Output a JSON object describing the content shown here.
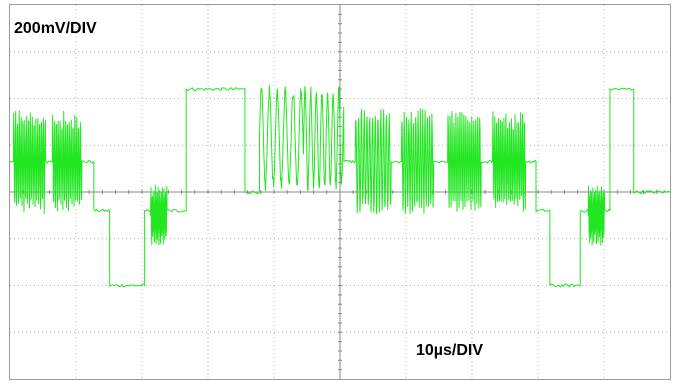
{
  "chart_data": {
    "type": "line",
    "vertical_scale": "200mV/DIV",
    "horizontal_scale": "10µs/DIV",
    "x_divisions": 10,
    "y_divisions": 8,
    "x_unit": "µs",
    "y_unit": "mV",
    "xlim": [
      0,
      100
    ],
    "ylim": [
      -800,
      800
    ],
    "grid": "dotted",
    "trace_color": "#22e622",
    "series": [
      {
        "segments": [
          {
            "type": "dc",
            "t0": 0.0,
            "t1": 0.5,
            "v": 130
          },
          {
            "type": "burst",
            "t0": 0.5,
            "t1": 5.4,
            "center": 130,
            "amp": 230,
            "period": 0.28
          },
          {
            "type": "dc",
            "t0": 5.4,
            "t1": 6.4,
            "v": 130
          },
          {
            "type": "burst",
            "t0": 6.4,
            "t1": 10.9,
            "center": 130,
            "amp": 220,
            "period": 0.28
          },
          {
            "type": "dc",
            "t0": 10.9,
            "t1": 12.7,
            "v": 130
          },
          {
            "type": "dc",
            "t0": 12.7,
            "t1": 15.1,
            "v": -80
          },
          {
            "type": "dc",
            "t0": 15.1,
            "t1": 20.4,
            "v": -400
          },
          {
            "type": "dc",
            "t0": 20.4,
            "t1": 21.3,
            "v": -80
          },
          {
            "type": "burst",
            "t0": 21.3,
            "t1": 23.8,
            "center": -100,
            "amp": 140,
            "period": 0.22
          },
          {
            "type": "dc",
            "t0": 23.8,
            "t1": 26.7,
            "v": -80
          },
          {
            "type": "dc",
            "t0": 26.7,
            "t1": 35.6,
            "v": 440
          },
          {
            "type": "dc",
            "t0": 35.6,
            "t1": 37.8,
            "v": 0
          },
          {
            "type": "burst",
            "t0": 37.8,
            "t1": 44.5,
            "center": 230,
            "amp": 230,
            "period": 1.2
          },
          {
            "type": "burst",
            "t0": 44.5,
            "t1": 50.6,
            "center": 230,
            "amp": 230,
            "period": 0.85
          },
          {
            "type": "dc",
            "t0": 50.6,
            "t1": 52.3,
            "v": 130
          },
          {
            "type": "burst",
            "t0": 52.3,
            "t1": 57.8,
            "center": 130,
            "amp": 230,
            "period": 0.42
          },
          {
            "type": "dc",
            "t0": 57.8,
            "t1": 59.3,
            "v": 130
          },
          {
            "type": "burst",
            "t0": 59.3,
            "t1": 64.2,
            "center": 130,
            "amp": 230,
            "period": 0.35
          },
          {
            "type": "dc",
            "t0": 64.2,
            "t1": 66.3,
            "v": 130
          },
          {
            "type": "burst",
            "t0": 66.3,
            "t1": 71.4,
            "center": 130,
            "amp": 230,
            "period": 0.3
          },
          {
            "type": "dc",
            "t0": 71.4,
            "t1": 73.1,
            "v": 130
          },
          {
            "type": "burst",
            "t0": 73.1,
            "t1": 78.2,
            "center": 130,
            "amp": 220,
            "period": 0.28
          },
          {
            "type": "dc",
            "t0": 78.2,
            "t1": 79.7,
            "v": 130
          },
          {
            "type": "dc",
            "t0": 79.7,
            "t1": 81.8,
            "v": -80
          },
          {
            "type": "dc",
            "t0": 81.8,
            "t1": 86.4,
            "v": -400
          },
          {
            "type": "dc",
            "t0": 86.4,
            "t1": 87.6,
            "v": -80
          },
          {
            "type": "burst",
            "t0": 87.6,
            "t1": 90.1,
            "center": -100,
            "amp": 140,
            "period": 0.22
          },
          {
            "type": "dc",
            "t0": 90.1,
            "t1": 90.9,
            "v": -80
          },
          {
            "type": "dc",
            "t0": 90.9,
            "t1": 94.5,
            "v": 440
          },
          {
            "type": "dc",
            "t0": 94.5,
            "t1": 96.2,
            "v": 0
          },
          {
            "type": "dc",
            "t0": 96.2,
            "t1": 100.0,
            "v": 0
          }
        ]
      }
    ]
  }
}
